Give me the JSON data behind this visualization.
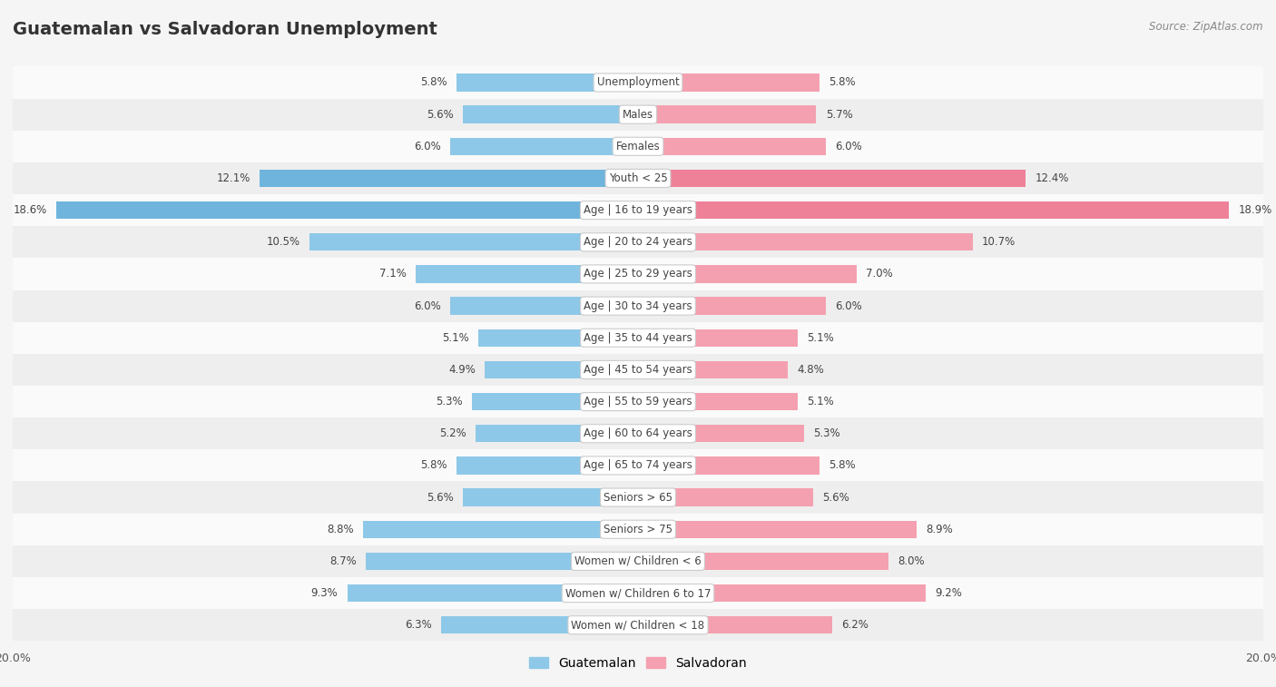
{
  "title": "Guatemalan vs Salvadoran Unemployment",
  "source": "Source: ZipAtlas.com",
  "categories": [
    "Unemployment",
    "Males",
    "Females",
    "Youth < 25",
    "Age | 16 to 19 years",
    "Age | 20 to 24 years",
    "Age | 25 to 29 years",
    "Age | 30 to 34 years",
    "Age | 35 to 44 years",
    "Age | 45 to 54 years",
    "Age | 55 to 59 years",
    "Age | 60 to 64 years",
    "Age | 65 to 74 years",
    "Seniors > 65",
    "Seniors > 75",
    "Women w/ Children < 6",
    "Women w/ Children 6 to 17",
    "Women w/ Children < 18"
  ],
  "guatemalan": [
    5.8,
    5.6,
    6.0,
    12.1,
    18.6,
    10.5,
    7.1,
    6.0,
    5.1,
    4.9,
    5.3,
    5.2,
    5.8,
    5.6,
    8.8,
    8.7,
    9.3,
    6.3
  ],
  "salvadoran": [
    5.8,
    5.7,
    6.0,
    12.4,
    18.9,
    10.7,
    7.0,
    6.0,
    5.1,
    4.8,
    5.1,
    5.3,
    5.8,
    5.6,
    8.9,
    8.0,
    9.2,
    6.2
  ],
  "guatemalan_color": "#8EC8E8",
  "salvadoran_color": "#F4A0B0",
  "guatemalan_color_highlight": "#6EB4DC",
  "salvadoran_color_highlight": "#EE8098",
  "highlight_indices": [
    3,
    4
  ],
  "xlim": 20.0,
  "background_color": "#f5f5f5",
  "row_colors": [
    "#fafafa",
    "#eeeeee"
  ]
}
